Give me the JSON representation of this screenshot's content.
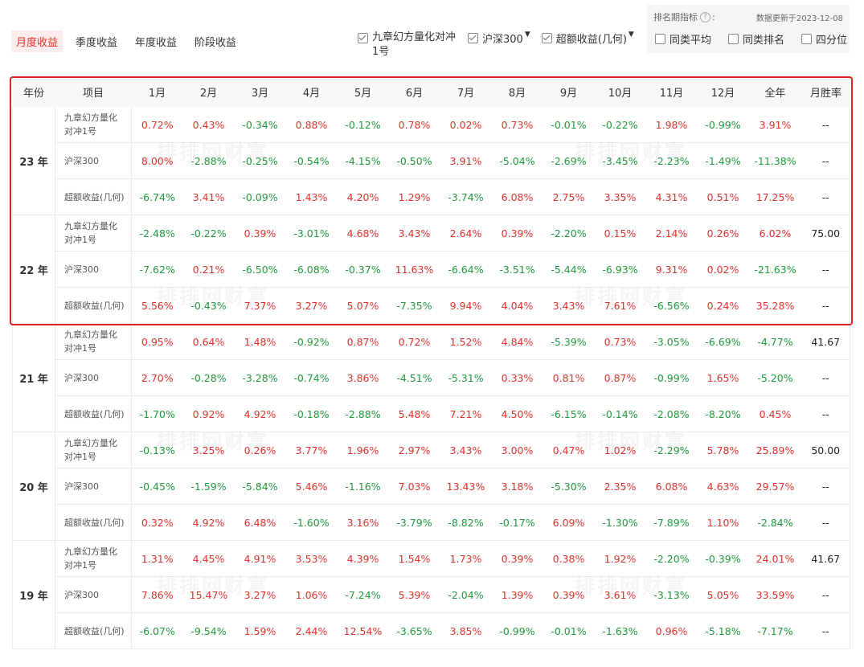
{
  "tabs": [
    "月度收益",
    "季度收益",
    "年度收益",
    "阶段收益"
  ],
  "legend": [
    {
      "label": "九章幻方量化对冲1号",
      "checked": true,
      "dropdown": false
    },
    {
      "label": "沪深300",
      "checked": true,
      "dropdown": true
    },
    {
      "label": "超额收益(几何)",
      "checked": true,
      "dropdown": true
    }
  ],
  "ranking": {
    "title": "排名期指标",
    "help_icon": "?",
    "colon": ":",
    "update_text": "数据更新于2023-12-08",
    "options": [
      "同类平均",
      "同类排名",
      "四分位"
    ]
  },
  "headers": [
    "年份",
    "项目",
    "1月",
    "2月",
    "3月",
    "4月",
    "5月",
    "6月",
    "7月",
    "8月",
    "9月",
    "10月",
    "11月",
    "12月",
    "全年",
    "月胜率"
  ],
  "watermark": "排排网财富",
  "colors": {
    "positive": "#e0322d",
    "negative": "#1e9b3c",
    "active_tab": "#e0322d",
    "highlight_border": "#e02222"
  },
  "years": [
    {
      "year": "23 年",
      "rows": [
        {
          "item": "九章幻方量化\n对冲1号",
          "values": [
            "0.72%",
            "0.43%",
            "-0.34%",
            "0.88%",
            "-0.12%",
            "0.78%",
            "0.02%",
            "0.73%",
            "-0.01%",
            "-0.22%",
            "1.98%",
            "-0.99%",
            "3.91%"
          ],
          "winrate": "--"
        },
        {
          "item": "沪深300",
          "values": [
            "8.00%",
            "-2.88%",
            "-0.25%",
            "-0.54%",
            "-4.15%",
            "-0.50%",
            "3.91%",
            "-5.04%",
            "-2.69%",
            "-3.45%",
            "-2.23%",
            "-1.49%",
            "-11.38%"
          ],
          "winrate": "--"
        },
        {
          "item": "超额收益(几何)",
          "values": [
            "-6.74%",
            "3.41%",
            "-0.09%",
            "1.43%",
            "4.20%",
            "1.29%",
            "-3.74%",
            "6.08%",
            "2.75%",
            "3.35%",
            "4.31%",
            "0.51%",
            "17.25%"
          ],
          "winrate": "--"
        }
      ]
    },
    {
      "year": "22 年",
      "rows": [
        {
          "item": "九章幻方量化\n对冲1号",
          "values": [
            "-2.48%",
            "-0.22%",
            "0.39%",
            "-3.01%",
            "4.68%",
            "3.43%",
            "2.64%",
            "0.39%",
            "-2.20%",
            "0.15%",
            "2.14%",
            "0.26%",
            "6.02%"
          ],
          "winrate": "75.00"
        },
        {
          "item": "沪深300",
          "values": [
            "-7.62%",
            "0.21%",
            "-6.50%",
            "-6.08%",
            "-0.37%",
            "11.63%",
            "-6.64%",
            "-3.51%",
            "-5.44%",
            "-6.93%",
            "9.31%",
            "0.02%",
            "-21.63%"
          ],
          "winrate": "--"
        },
        {
          "item": "超额收益(几何)",
          "values": [
            "5.56%",
            "-0.43%",
            "7.37%",
            "3.27%",
            "5.07%",
            "-7.35%",
            "9.94%",
            "4.04%",
            "3.43%",
            "7.61%",
            "-6.56%",
            "0.24%",
            "35.28%"
          ],
          "winrate": "--"
        }
      ]
    },
    {
      "year": "21 年",
      "rows": [
        {
          "item": "九章幻方量化\n对冲1号",
          "values": [
            "0.95%",
            "0.64%",
            "1.48%",
            "-0.92%",
            "0.87%",
            "0.72%",
            "1.52%",
            "4.84%",
            "-5.39%",
            "0.73%",
            "-3.05%",
            "-6.69%",
            "-4.77%"
          ],
          "winrate": "41.67"
        },
        {
          "item": "沪深300",
          "values": [
            "2.70%",
            "-0.28%",
            "-3.28%",
            "-0.74%",
            "3.86%",
            "-4.51%",
            "-5.31%",
            "0.33%",
            "0.81%",
            "0.87%",
            "-0.99%",
            "1.65%",
            "-5.20%"
          ],
          "winrate": "--"
        },
        {
          "item": "超额收益(几何)",
          "values": [
            "-1.70%",
            "0.92%",
            "4.92%",
            "-0.18%",
            "-2.88%",
            "5.48%",
            "7.21%",
            "4.50%",
            "-6.15%",
            "-0.14%",
            "-2.08%",
            "-8.20%",
            "0.45%"
          ],
          "winrate": "--"
        }
      ]
    },
    {
      "year": "20 年",
      "rows": [
        {
          "item": "九章幻方量化\n对冲1号",
          "values": [
            "-0.13%",
            "3.25%",
            "0.26%",
            "3.77%",
            "1.96%",
            "2.97%",
            "3.43%",
            "3.00%",
            "0.47%",
            "1.02%",
            "-2.29%",
            "5.78%",
            "25.89%"
          ],
          "winrate": "50.00"
        },
        {
          "item": "沪深300",
          "values": [
            "-0.45%",
            "-1.59%",
            "-5.84%",
            "5.46%",
            "-1.16%",
            "7.03%",
            "13.43%",
            "3.18%",
            "-5.30%",
            "2.35%",
            "6.08%",
            "4.63%",
            "29.57%"
          ],
          "winrate": "--"
        },
        {
          "item": "超额收益(几何)",
          "values": [
            "0.32%",
            "4.92%",
            "6.48%",
            "-1.60%",
            "3.16%",
            "-3.79%",
            "-8.82%",
            "-0.17%",
            "6.09%",
            "-1.30%",
            "-7.89%",
            "1.10%",
            "-2.84%"
          ],
          "winrate": "--"
        }
      ]
    },
    {
      "year": "19 年",
      "rows": [
        {
          "item": "九章幻方量化\n对冲1号",
          "values": [
            "1.31%",
            "4.45%",
            "4.91%",
            "3.53%",
            "4.39%",
            "1.54%",
            "1.73%",
            "0.39%",
            "0.38%",
            "1.92%",
            "-2.20%",
            "-0.39%",
            "24.01%"
          ],
          "winrate": "41.67"
        },
        {
          "item": "沪深300",
          "values": [
            "7.86%",
            "15.47%",
            "3.27%",
            "1.06%",
            "-7.24%",
            "5.39%",
            "-2.04%",
            "1.39%",
            "0.39%",
            "3.61%",
            "-3.13%",
            "5.05%",
            "33.59%"
          ],
          "winrate": "--"
        },
        {
          "item": "超额收益(几何)",
          "values": [
            "-6.07%",
            "-9.54%",
            "1.59%",
            "2.44%",
            "12.54%",
            "-3.65%",
            "3.85%",
            "-0.99%",
            "-0.01%",
            "-1.63%",
            "0.96%",
            "-5.18%",
            "-7.17%"
          ],
          "winrate": "--"
        }
      ]
    }
  ]
}
